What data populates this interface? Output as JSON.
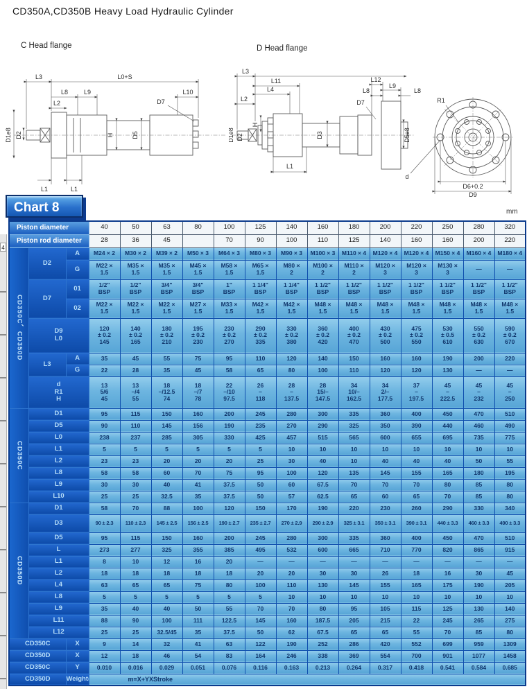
{
  "page": {
    "title": "CD350A,CD350B Heavy Load Hydraulic Cylinder",
    "left_drawing_title": "C Head flange",
    "right_drawing_title": "D Head flange",
    "chart_label": "Chart 8",
    "unit": "mm",
    "page_marker": "4"
  },
  "dims": {
    "l0s": "L0+S",
    "l1": "L1",
    "l2": "L2",
    "l3": "L3",
    "l4": "L4",
    "l8": "L8",
    "l9": "L9",
    "l10": "L10",
    "l11": "L11",
    "l12": "L12",
    "d": "d",
    "d1e8": "D1e8",
    "d2": "D2",
    "d3": "D3",
    "d5": "D5",
    "d5e8": "D5e8",
    "d6": "D6+0.2",
    "d7": "D7",
    "d9": "D9",
    "h": "H",
    "r1": "R1"
  },
  "table": {
    "rows": [
      {
        "h": 19,
        "lead": [
          {
            "t": "Piston diameter",
            "c": "hl",
            "cs": 3
          }
        ],
        "vc": "hv",
        "vals": [
          "40",
          "50",
          "63",
          "80",
          "100",
          "125",
          "140",
          "160",
          "180",
          "200",
          "220",
          "250",
          "280",
          "320"
        ]
      },
      {
        "h": 19,
        "lead": [
          {
            "t": "Piston rod diameter",
            "c": "hl",
            "cs": 3
          }
        ],
        "vc": "hv",
        "vals": [
          "28",
          "36",
          "45",
          "",
          "70",
          "90",
          "100",
          "110",
          "125",
          "140",
          "160",
          "160",
          "200",
          "220"
        ]
      },
      {
        "h": 18,
        "lead": [
          {
            "t": "CD350C、CD350D",
            "c": "g",
            "rs": 8
          },
          {
            "t": "D2",
            "c": "l",
            "rs": 2
          },
          {
            "t": "A",
            "c": "s"
          }
        ],
        "vals": [
          "M24 × 2",
          "M30 × 2",
          "M39 × 2",
          "M50 × 3",
          "M64 × 3",
          "M80 × 3",
          "M90 × 3",
          "M100 × 3",
          "M110 × 4",
          "M120 × 4",
          "M120 × 4",
          "M150 × 4",
          "M160 × 4",
          "M180 × 4"
        ]
      },
      {
        "h": 28,
        "lead": [
          {
            "t": "G",
            "c": "s"
          }
        ],
        "vals": [
          "M22 ×\n1.5",
          "M35 ×\n1.5",
          "M35 ×\n1.5",
          "M45 ×\n1.5",
          "M58 ×\n1.5",
          "M65 ×\n1.5",
          "M80 ×\n2",
          "M100 ×\n2",
          "M110 ×\n2",
          "M120 ×\n3",
          "M120 ×\n3",
          "M130 ×\n3",
          "—",
          "—"
        ]
      },
      {
        "h": 28,
        "lead": [
          {
            "t": "D7",
            "c": "l",
            "rs": 2
          },
          {
            "t": "01",
            "c": "s"
          }
        ],
        "vals": [
          "1/2\"\nBSP",
          "1/2\"\nBSP",
          "3/4\"\nBSP",
          "3/4\"\nBSP",
          "1\"\nBSP",
          "1 1/4\"\nBSP",
          "1 1/4\"\nBSP",
          "1 1/2\"\nBSP",
          "1 1/2\"\nBSP",
          "1 1/2\"\nBSP",
          "1 1/2\"\nBSP",
          "1 1/2\"\nBSP",
          "1 1/2\"\nBSP",
          "1 1/2\"\nBSP"
        ]
      },
      {
        "h": 28,
        "lead": [
          {
            "t": "02",
            "c": "s"
          }
        ],
        "vals": [
          "M22 ×\n1.5",
          "M22 ×\n1.5",
          "M22 ×\n1.5",
          "M27 ×\n1.5",
          "M33 ×\n1.5",
          "M42 ×\n1.5",
          "M42 ×\n1.5",
          "M48 ×\n1.5",
          "M48 ×\n1.5",
          "M48 ×\n1.5",
          "M48 ×\n1.5",
          "M48 ×\n1.5",
          "M48 ×\n1.5",
          "M48 ×\n1.5"
        ]
      },
      {
        "h": 50,
        "lead": [
          {
            "t": "D9\nL0",
            "c": "l",
            "cs": 2
          }
        ],
        "vals": [
          "120\n± 0.2\n145",
          "140\n± 0.2\n165",
          "180\n± 0.2\n210",
          "195\n± 0.2\n230",
          "230\n± 0.2\n270",
          "290\n± 0.2\n335",
          "330\n± 0.2\n380",
          "360\n± 0.2\n420",
          "400\n± 0.2\n470",
          "430\n± 0.2\n500",
          "475\n± 0.2\n550",
          "530\n± 0.5\n610",
          "550\n± 0.2\n630",
          "590\n± 0.2\n670"
        ]
      },
      {
        "h": 17,
        "lead": [
          {
            "t": "L3",
            "c": "l",
            "rs": 2
          },
          {
            "t": "A",
            "c": "s"
          }
        ],
        "vals": [
          "35",
          "45",
          "55",
          "75",
          "95",
          "110",
          "120",
          "140",
          "150",
          "160",
          "160",
          "190",
          "200",
          "220"
        ]
      },
      {
        "h": 17,
        "lead": [
          {
            "t": "G",
            "c": "s"
          }
        ],
        "vals": [
          "22",
          "28",
          "35",
          "45",
          "58",
          "65",
          "80",
          "100",
          "110",
          "120",
          "120",
          "130",
          "—",
          "—"
        ]
      },
      {
        "h": 46,
        "lead": [
          {
            "t": "d\nR1\nH",
            "c": "l",
            "cs": 2
          }
        ],
        "vals": [
          "13\n5/6\n45",
          "13\n–/4\n55",
          "18\n–/12.5\n74",
          "18\n–/7\n78",
          "22\n–/10\n97.5",
          "26\n–\n118",
          "28\n–\n137.5",
          "28\n15/–\n147.5",
          "34\n10/–\n162.5",
          "34\n2/–\n177.5",
          "37\n–\n197.5",
          "45\n–\n222.5",
          "45\n–\n232",
          "45\n–\n250"
        ]
      },
      {
        "h": 17,
        "lead": [
          {
            "t": "CD350C",
            "c": "g",
            "rs": 8
          },
          {
            "t": "D1",
            "c": "l",
            "cs": 2
          }
        ],
        "vals": [
          "95",
          "115",
          "150",
          "160",
          "200",
          "245",
          "280",
          "300",
          "335",
          "360",
          "400",
          "450",
          "470",
          "510"
        ]
      },
      {
        "h": 17,
        "lead": [
          {
            "t": "D5",
            "c": "l",
            "cs": 2
          }
        ],
        "vals": [
          "90",
          "110",
          "145",
          "156",
          "190",
          "235",
          "270",
          "290",
          "325",
          "350",
          "390",
          "440",
          "460",
          "490"
        ]
      },
      {
        "h": 17,
        "lead": [
          {
            "t": "L0",
            "c": "l",
            "cs": 2
          }
        ],
        "vals": [
          "238",
          "237",
          "285",
          "305",
          "330",
          "425",
          "457",
          "515",
          "565",
          "600",
          "655",
          "695",
          "735",
          "775"
        ]
      },
      {
        "h": 17,
        "lead": [
          {
            "t": "L1",
            "c": "l",
            "cs": 2
          }
        ],
        "vals": [
          "5",
          "5",
          "5",
          "5",
          "5",
          "5",
          "10",
          "10",
          "10",
          "10",
          "10",
          "10",
          "10",
          "10"
        ]
      },
      {
        "h": 17,
        "lead": [
          {
            "t": "L2",
            "c": "l",
            "cs": 2
          }
        ],
        "vals": [
          "23",
          "23",
          "20",
          "20",
          "20",
          "25",
          "30",
          "40",
          "10",
          "40",
          "40",
          "40",
          "50",
          "55"
        ]
      },
      {
        "h": 17,
        "lead": [
          {
            "t": "L8",
            "c": "l",
            "cs": 2
          }
        ],
        "vals": [
          "58",
          "58",
          "60",
          "70",
          "75",
          "95",
          "100",
          "120",
          "135",
          "145",
          "155",
          "165",
          "180",
          "195"
        ]
      },
      {
        "h": 17,
        "lead": [
          {
            "t": "L9",
            "c": "l",
            "cs": 2
          }
        ],
        "vals": [
          "30",
          "30",
          "40",
          "41",
          "37.5",
          "50",
          "60",
          "67.5",
          "70",
          "70",
          "70",
          "80",
          "85",
          "80"
        ]
      },
      {
        "h": 17,
        "lead": [
          {
            "t": "L10",
            "c": "l",
            "cs": 2
          }
        ],
        "vals": [
          "25",
          "25",
          "32.5",
          "35",
          "37.5",
          "50",
          "57",
          "62.5",
          "65",
          "60",
          "65",
          "70",
          "85",
          "80"
        ]
      },
      {
        "h": 17,
        "lead": [
          {
            "t": "CD350D",
            "c": "g",
            "rs": 11
          },
          {
            "t": "D1",
            "c": "l",
            "cs": 2
          }
        ],
        "vals": [
          "58",
          "70",
          "88",
          "100",
          "120",
          "150",
          "170",
          "190",
          "220",
          "230",
          "260",
          "290",
          "330",
          "340"
        ]
      },
      {
        "h": 26,
        "lead": [
          {
            "t": "D3",
            "c": "l",
            "cs": 2
          }
        ],
        "vc": "v sm",
        "vals": [
          "90 ± 2.3",
          "110 ± 2.3",
          "145 ± 2.5",
          "156 ± 2.5",
          "190 ± 2.7",
          "235 ± 2.7",
          "270 ± 2.9",
          "290 ± 2.9",
          "325 ± 3.1",
          "350 ± 3.1",
          "390 ± 3.1",
          "440 ± 3.3",
          "460 ± 3.3",
          "490 ± 3.3"
        ]
      },
      {
        "h": 17,
        "lead": [
          {
            "t": "D5",
            "c": "l",
            "cs": 2
          }
        ],
        "vals": [
          "95",
          "115",
          "150",
          "160",
          "200",
          "245",
          "280",
          "300",
          "335",
          "360",
          "400",
          "450",
          "470",
          "510"
        ]
      },
      {
        "h": 17,
        "lead": [
          {
            "t": "L",
            "c": "l",
            "cs": 2
          }
        ],
        "vals": [
          "273",
          "277",
          "325",
          "355",
          "385",
          "495",
          "532",
          "600",
          "665",
          "710",
          "770",
          "820",
          "865",
          "915"
        ]
      },
      {
        "h": 17,
        "lead": [
          {
            "t": "L1",
            "c": "l",
            "cs": 2
          }
        ],
        "vals": [
          "8",
          "10",
          "12",
          "16",
          "20",
          "—",
          "—",
          "—",
          "—",
          "—",
          "—",
          "—",
          "—",
          "—"
        ]
      },
      {
        "h": 17,
        "lead": [
          {
            "t": "L2",
            "c": "l",
            "cs": 2
          }
        ],
        "vals": [
          "18",
          "18",
          "18",
          "18",
          "18",
          "20",
          "20",
          "30",
          "30",
          "26",
          "18",
          "16",
          "30",
          "45"
        ]
      },
      {
        "h": 17,
        "lead": [
          {
            "t": "L4",
            "c": "l",
            "cs": 2
          }
        ],
        "vals": [
          "63",
          "65",
          "65",
          "75",
          "80",
          "100",
          "110",
          "130",
          "145",
          "155",
          "165",
          "175",
          "190",
          "205"
        ]
      },
      {
        "h": 17,
        "lead": [
          {
            "t": "L8",
            "c": "l",
            "cs": 2
          }
        ],
        "vals": [
          "5",
          "5",
          "5",
          "5",
          "5",
          "5",
          "10",
          "10",
          "10",
          "10",
          "10",
          "10",
          "10",
          "10"
        ]
      },
      {
        "h": 17,
        "lead": [
          {
            "t": "L9",
            "c": "l",
            "cs": 2
          }
        ],
        "vals": [
          "35",
          "40",
          "40",
          "50",
          "55",
          "70",
          "70",
          "80",
          "95",
          "105",
          "115",
          "125",
          "130",
          "140"
        ]
      },
      {
        "h": 17,
        "lead": [
          {
            "t": "L11",
            "c": "l",
            "cs": 2
          }
        ],
        "vals": [
          "88",
          "90",
          "100",
          "111",
          "122.5",
          "145",
          "160",
          "187.5",
          "205",
          "215",
          "22",
          "245",
          "265",
          "275"
        ]
      },
      {
        "h": 17,
        "lead": [
          {
            "t": "L12",
            "c": "l",
            "cs": 2
          }
        ],
        "vals": [
          "25",
          "25",
          "32.5/45",
          "35",
          "37.5",
          "50",
          "62",
          "67.5",
          "65",
          "65",
          "55",
          "70",
          "85",
          "80"
        ]
      },
      {
        "h": 17,
        "lead": [
          {
            "t": "CD350C",
            "c": "bl",
            "cs": 2
          },
          {
            "t": "X",
            "c": "s"
          }
        ],
        "vals": [
          "9",
          "14",
          "32",
          "41",
          "63",
          "122",
          "190",
          "252",
          "286",
          "420",
          "552",
          "699",
          "959",
          "1309"
        ]
      },
      {
        "h": 17,
        "lead": [
          {
            "t": "CD350D",
            "c": "bl",
            "cs": 2
          },
          {
            "t": "X",
            "c": "s"
          }
        ],
        "vals": [
          "12",
          "18",
          "46",
          "54",
          "83",
          "164",
          "246",
          "338",
          "369",
          "554",
          "700",
          "901",
          "1077",
          "1458"
        ]
      },
      {
        "h": 17,
        "lead": [
          {
            "t": "CD350C",
            "c": "bl",
            "cs": 2
          },
          {
            "t": "Y",
            "c": "s"
          }
        ],
        "vals": [
          "0.010",
          "0.016",
          "0.029",
          "0.051",
          "0.076",
          "0.116",
          "0.163",
          "0.213",
          "0.264",
          "0.317",
          "0.418",
          "0.541",
          "0.584",
          "0.685"
        ]
      },
      {
        "h": 17,
        "lead": [
          {
            "t": "CD350D",
            "c": "bl",
            "cs": 2
          },
          {
            "t": "Weight(kg)",
            "c": "s"
          },
          {
            "t": "m=X+YXStroke",
            "c": "v fm",
            "cs": 14
          }
        ]
      }
    ]
  }
}
